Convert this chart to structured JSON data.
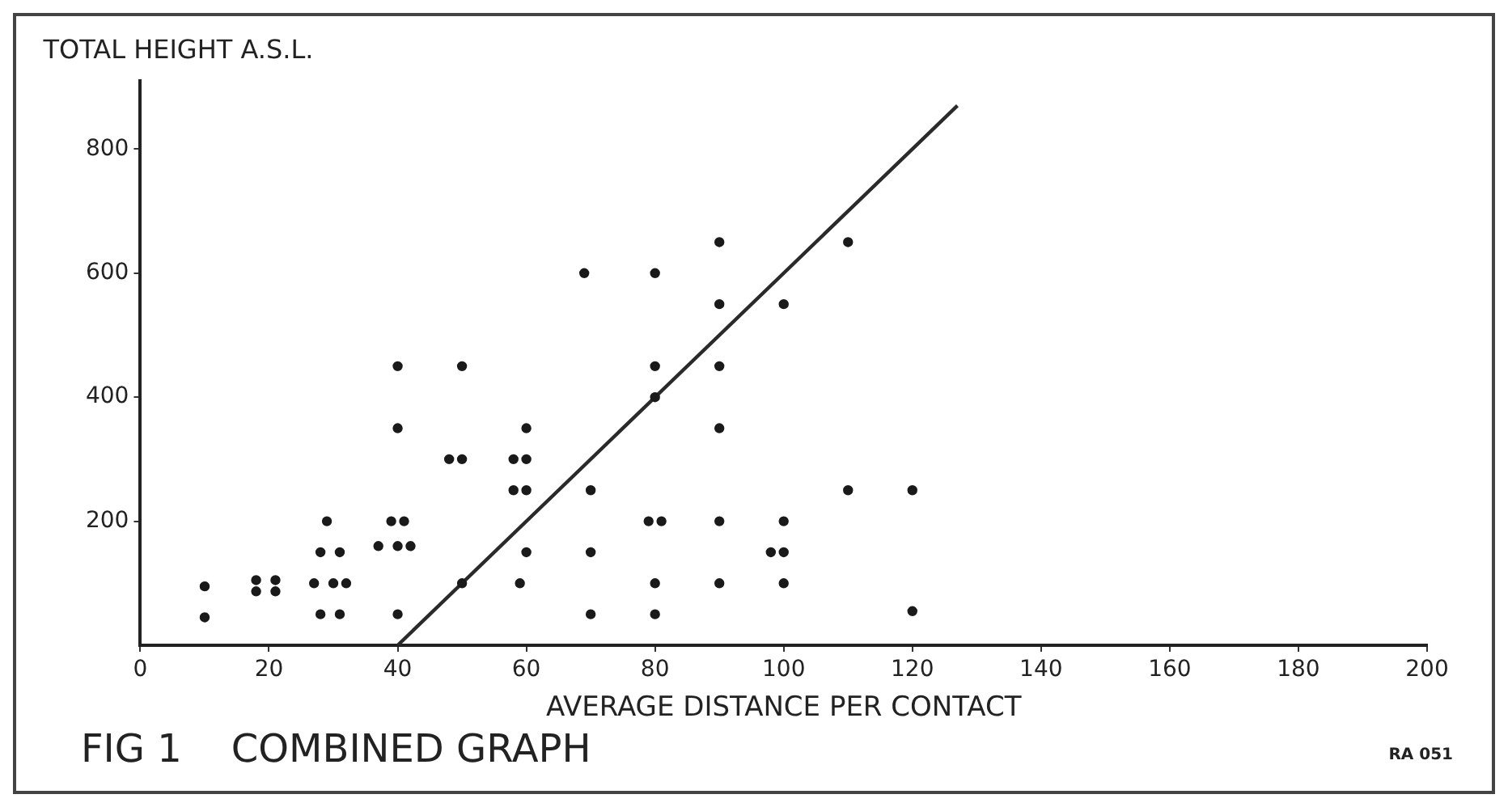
{
  "chart_data": {
    "type": "scatter",
    "title": "FIG 1    COMBINED GRAPH",
    "xlabel": "AVERAGE DISTANCE PER CONTACT",
    "ylabel": "TOTAL HEIGHT A.S.L.",
    "annotations": [
      "RA 051"
    ],
    "xlim": [
      0,
      200
    ],
    "xticks": [
      0,
      20,
      40,
      60,
      80,
      100,
      120,
      140,
      160,
      180,
      200
    ],
    "ylim": [
      0,
      910
    ],
    "yticks": [
      200,
      400,
      600,
      800
    ],
    "grid": false,
    "legend": false,
    "series": [
      {
        "marker": "circle",
        "color": "#1a1a1a",
        "x": [
          10,
          10,
          18,
          21,
          18,
          21,
          29,
          28,
          31,
          27,
          30,
          32,
          28,
          31,
          40,
          40,
          39,
          41,
          37,
          40,
          42,
          40,
          50,
          48,
          50,
          50,
          60,
          58,
          60,
          58,
          60,
          60,
          59,
          69,
          70,
          70,
          70,
          80,
          80,
          80,
          79,
          81,
          80,
          80,
          90,
          90,
          90,
          90,
          90,
          90,
          100,
          98,
          100,
          100,
          100,
          110,
          110,
          120,
          120
        ],
        "values": [
          95,
          45,
          105,
          105,
          87,
          87,
          200,
          150,
          150,
          100,
          100,
          100,
          50,
          50,
          450,
          350,
          200,
          200,
          160,
          160,
          160,
          50,
          450,
          300,
          300,
          100,
          350,
          300,
          300,
          250,
          250,
          150,
          100,
          600,
          250,
          150,
          50,
          600,
          450,
          400,
          200,
          200,
          100,
          50,
          650,
          550,
          450,
          350,
          200,
          100,
          550,
          150,
          150,
          200,
          100,
          650,
          250,
          250,
          55
        ]
      },
      {
        "type": "line",
        "color": "#2a2a2a",
        "x": [
          40,
          127
        ],
        "values": [
          0,
          870
        ]
      }
    ]
  }
}
